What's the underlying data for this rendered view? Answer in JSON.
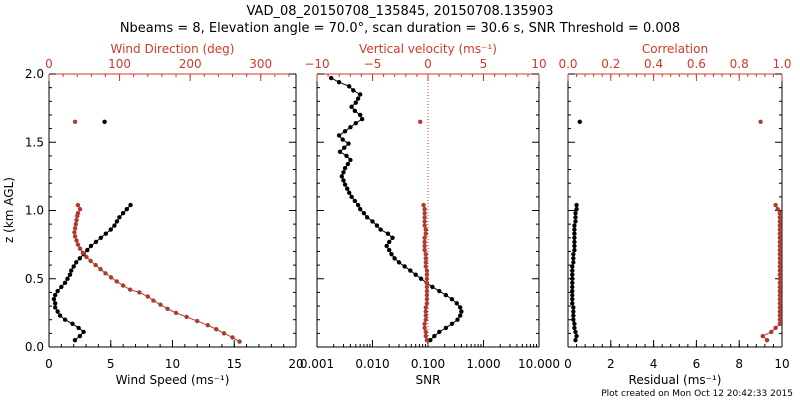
{
  "figure": {
    "title_line1": "VAD_08_20150708_135845, 20150708.135903",
    "title_line2": "Nbeams = 8, Elevation angle = 70.0°, scan duration = 30.6 s, SNR Threshold = 0.008",
    "y_label": "z (km AGL)",
    "footer": "Plot created on Mon Oct 12 20:42:33 2015",
    "colors": {
      "black": "#000000",
      "red": "#b03a2e",
      "red_text": "#d03a2a"
    }
  },
  "chart_data": [
    {
      "type": "scatter",
      "panel": "wind",
      "ylabel": "z (km AGL)",
      "ylim": [
        0.0,
        2.0
      ],
      "y_ticks": [
        "0.0",
        "0.5",
        "1.0",
        "1.5",
        "2.0"
      ],
      "bottom_axis": {
        "label": "Wind Speed (ms⁻¹)",
        "range": [
          0,
          20
        ],
        "ticks": [
          "0",
          "5",
          "10",
          "15",
          "20"
        ]
      },
      "top_axis": {
        "label": "Wind Direction (deg)",
        "range": [
          0,
          350
        ],
        "ticks": [
          "0",
          "100",
          "200",
          "300"
        ]
      },
      "series": [
        {
          "name": "Wind Speed",
          "axis": "bottom",
          "color": "#000000",
          "points": [
            [
              2.1,
              0.05
            ],
            [
              2.5,
              0.08
            ],
            [
              2.8,
              0.11
            ],
            [
              2.4,
              0.14
            ],
            [
              1.9,
              0.17
            ],
            [
              1.3,
              0.2
            ],
            [
              0.9,
              0.23
            ],
            [
              0.7,
              0.26
            ],
            [
              0.5,
              0.29
            ],
            [
              0.5,
              0.32
            ],
            [
              0.4,
              0.35
            ],
            [
              0.5,
              0.38
            ],
            [
              0.7,
              0.41
            ],
            [
              1.0,
              0.44
            ],
            [
              1.3,
              0.47
            ],
            [
              1.5,
              0.5
            ],
            [
              1.7,
              0.53
            ],
            [
              1.8,
              0.56
            ],
            [
              2.0,
              0.59
            ],
            [
              2.2,
              0.62
            ],
            [
              2.5,
              0.65
            ],
            [
              2.8,
              0.68
            ],
            [
              3.1,
              0.71
            ],
            [
              3.4,
              0.74
            ],
            [
              3.8,
              0.77
            ],
            [
              4.2,
              0.8
            ],
            [
              4.6,
              0.83
            ],
            [
              5.0,
              0.86
            ],
            [
              5.3,
              0.89
            ],
            [
              5.5,
              0.92
            ],
            [
              5.7,
              0.95
            ],
            [
              6.0,
              0.98
            ],
            [
              6.3,
              1.01
            ],
            [
              6.6,
              1.04
            ],
            [
              4.5,
              1.65
            ]
          ]
        },
        {
          "name": "Wind Direction",
          "axis": "top",
          "color": "#b03a2e",
          "points": [
            [
              270,
              0.04
            ],
            [
              260,
              0.07
            ],
            [
              248,
              0.1
            ],
            [
              237,
              0.13
            ],
            [
              225,
              0.16
            ],
            [
              210,
              0.19
            ],
            [
              195,
              0.22
            ],
            [
              180,
              0.25
            ],
            [
              168,
              0.28
            ],
            [
              158,
              0.31
            ],
            [
              148,
              0.34
            ],
            [
              140,
              0.37
            ],
            [
              128,
              0.4
            ],
            [
              115,
              0.42
            ],
            [
              105,
              0.45
            ],
            [
              96,
              0.48
            ],
            [
              88,
              0.51
            ],
            [
              80,
              0.54
            ],
            [
              73,
              0.57
            ],
            [
              66,
              0.6
            ],
            [
              59,
              0.63
            ],
            [
              53,
              0.66
            ],
            [
              48,
              0.69
            ],
            [
              44,
              0.72
            ],
            [
              41,
              0.75
            ],
            [
              39,
              0.78
            ],
            [
              37,
              0.81
            ],
            [
              36,
              0.84
            ],
            [
              37,
              0.87
            ],
            [
              38,
              0.9
            ],
            [
              39,
              0.93
            ],
            [
              40,
              0.96
            ],
            [
              41,
              0.98
            ],
            [
              44,
              1.01
            ],
            [
              41,
              1.04
            ],
            [
              37,
              1.65
            ]
          ]
        }
      ]
    },
    {
      "type": "line",
      "panel": "snr",
      "ylim": [
        0.0,
        2.0
      ],
      "bottom_axis": {
        "label": "SNR",
        "scale": "log",
        "range": [
          0.001,
          10
        ],
        "ticks": [
          "0.001",
          "0.010",
          "0.100",
          "1.000",
          "10.000"
        ]
      },
      "top_axis": {
        "label": "Vertical velocity (ms⁻¹)",
        "range": [
          -10,
          10
        ],
        "ticks": [
          "−10",
          "−5",
          "0",
          "5",
          "10"
        ]
      },
      "series": [
        {
          "name": "SNR",
          "axis": "bottom",
          "color": "#000000",
          "line": true,
          "points": [
            [
              0.11,
              0.05
            ],
            [
              0.13,
              0.08
            ],
            [
              0.16,
              0.11
            ],
            [
              0.21,
              0.14
            ],
            [
              0.27,
              0.17
            ],
            [
              0.34,
              0.2
            ],
            [
              0.38,
              0.23
            ],
            [
              0.4,
              0.26
            ],
            [
              0.38,
              0.29
            ],
            [
              0.33,
              0.32
            ],
            [
              0.27,
              0.35
            ],
            [
              0.21,
              0.38
            ],
            [
              0.16,
              0.41
            ],
            [
              0.12,
              0.44
            ],
            [
              0.095,
              0.47
            ],
            [
              0.075,
              0.5
            ],
            [
              0.06,
              0.53
            ],
            [
              0.048,
              0.56
            ],
            [
              0.038,
              0.59
            ],
            [
              0.03,
              0.62
            ],
            [
              0.025,
              0.65
            ],
            [
              0.022,
              0.68
            ],
            [
              0.02,
              0.71
            ],
            [
              0.018,
              0.74
            ],
            [
              0.02,
              0.77
            ],
            [
              0.023,
              0.8
            ],
            [
              0.019,
              0.83
            ],
            [
              0.014,
              0.86
            ],
            [
              0.012,
              0.89
            ],
            [
              0.01,
              0.92
            ],
            [
              0.008,
              0.95
            ],
            [
              0.007,
              0.98
            ],
            [
              0.006,
              1.01
            ],
            [
              0.0055,
              1.04
            ],
            [
              0.0048,
              1.07
            ],
            [
              0.0042,
              1.1
            ],
            [
              0.0038,
              1.13
            ],
            [
              0.0035,
              1.16
            ],
            [
              0.0032,
              1.19
            ],
            [
              0.003,
              1.22
            ],
            [
              0.0028,
              1.25
            ],
            [
              0.003,
              1.28
            ],
            [
              0.0032,
              1.31
            ],
            [
              0.0036,
              1.34
            ],
            [
              0.004,
              1.37
            ],
            [
              0.0034,
              1.4
            ],
            [
              0.0026,
              1.43
            ],
            [
              0.0031,
              1.46
            ],
            [
              0.0037,
              1.49
            ],
            [
              0.0029,
              1.52
            ],
            [
              0.0025,
              1.55
            ],
            [
              0.0032,
              1.58
            ],
            [
              0.004,
              1.61
            ],
            [
              0.005,
              1.64
            ],
            [
              0.0065,
              1.67
            ],
            [
              0.006,
              1.7
            ],
            [
              0.0048,
              1.73
            ],
            [
              0.0042,
              1.76
            ],
            [
              0.005,
              1.79
            ],
            [
              0.0055,
              1.82
            ],
            [
              0.006,
              1.85
            ],
            [
              0.0045,
              1.88
            ],
            [
              0.0038,
              1.91
            ],
            [
              0.0025,
              1.94
            ],
            [
              0.0018,
              1.97
            ]
          ]
        },
        {
          "name": "Vertical velocity",
          "axis": "top",
          "color": "#b03a2e",
          "points": [
            [
              -0.1,
              0.05
            ],
            [
              -0.2,
              0.08
            ],
            [
              -0.2,
              0.11
            ],
            [
              -0.3,
              0.14
            ],
            [
              -0.3,
              0.17
            ],
            [
              -0.2,
              0.2
            ],
            [
              -0.2,
              0.23
            ],
            [
              -0.2,
              0.26
            ],
            [
              -0.2,
              0.29
            ],
            [
              -0.1,
              0.32
            ],
            [
              -0.1,
              0.35
            ],
            [
              -0.1,
              0.38
            ],
            [
              -0.1,
              0.41
            ],
            [
              -0.1,
              0.44
            ],
            [
              -0.1,
              0.47
            ],
            [
              -0.1,
              0.5
            ],
            [
              -0.1,
              0.53
            ],
            [
              -0.1,
              0.56
            ],
            [
              -0.2,
              0.59
            ],
            [
              -0.2,
              0.62
            ],
            [
              -0.2,
              0.65
            ],
            [
              -0.2,
              0.68
            ],
            [
              -0.3,
              0.71
            ],
            [
              -0.3,
              0.74
            ],
            [
              -0.3,
              0.77
            ],
            [
              -0.3,
              0.8
            ],
            [
              -0.2,
              0.83
            ],
            [
              -0.2,
              0.86
            ],
            [
              -0.3,
              0.89
            ],
            [
              -0.3,
              0.92
            ],
            [
              -0.3,
              0.95
            ],
            [
              -0.3,
              0.98
            ],
            [
              -0.3,
              1.01
            ],
            [
              -0.4,
              1.04
            ],
            [
              -0.7,
              1.65
            ]
          ]
        },
        {
          "name": "Zero reference",
          "axis": "top",
          "color": "#d03a2a",
          "style": "dotted",
          "x": 0
        }
      ]
    },
    {
      "type": "scatter",
      "panel": "residual",
      "ylim": [
        0.0,
        2.0
      ],
      "bottom_axis": {
        "label": "Residual (ms⁻¹)",
        "range": [
          0,
          10
        ],
        "ticks": [
          "0",
          "2",
          "4",
          "6",
          "8",
          "10"
        ]
      },
      "top_axis": {
        "label": "Correlation",
        "range": [
          0.0,
          1.0
        ],
        "ticks": [
          "0.0",
          "0.2",
          "0.4",
          "0.6",
          "0.8",
          "1.0"
        ]
      },
      "series": [
        {
          "name": "Residual",
          "axis": "bottom",
          "color": "#000000",
          "points": [
            [
              0.35,
              0.05
            ],
            [
              0.4,
              0.08
            ],
            [
              0.35,
              0.11
            ],
            [
              0.3,
              0.14
            ],
            [
              0.3,
              0.17
            ],
            [
              0.25,
              0.2
            ],
            [
              0.25,
              0.23
            ],
            [
              0.25,
              0.26
            ],
            [
              0.25,
              0.29
            ],
            [
              0.2,
              0.32
            ],
            [
              0.2,
              0.35
            ],
            [
              0.2,
              0.38
            ],
            [
              0.2,
              0.41
            ],
            [
              0.2,
              0.44
            ],
            [
              0.2,
              0.47
            ],
            [
              0.2,
              0.5
            ],
            [
              0.2,
              0.53
            ],
            [
              0.2,
              0.56
            ],
            [
              0.2,
              0.59
            ],
            [
              0.25,
              0.62
            ],
            [
              0.25,
              0.65
            ],
            [
              0.25,
              0.68
            ],
            [
              0.3,
              0.71
            ],
            [
              0.3,
              0.74
            ],
            [
              0.3,
              0.77
            ],
            [
              0.3,
              0.8
            ],
            [
              0.3,
              0.83
            ],
            [
              0.3,
              0.86
            ],
            [
              0.3,
              0.89
            ],
            [
              0.35,
              0.92
            ],
            [
              0.35,
              0.95
            ],
            [
              0.35,
              0.98
            ],
            [
              0.4,
              1.01
            ],
            [
              0.4,
              1.04
            ],
            [
              0.55,
              1.65
            ]
          ]
        },
        {
          "name": "Correlation",
          "axis": "top",
          "color": "#b03a2e",
          "points": [
            [
              0.93,
              0.05
            ],
            [
              0.91,
              0.08
            ],
            [
              0.95,
              0.11
            ],
            [
              0.97,
              0.14
            ],
            [
              0.99,
              0.17
            ],
            [
              0.99,
              0.2
            ],
            [
              0.99,
              0.23
            ],
            [
              0.99,
              0.26
            ],
            [
              0.99,
              0.29
            ],
            [
              0.99,
              0.32
            ],
            [
              0.99,
              0.35
            ],
            [
              0.99,
              0.38
            ],
            [
              0.99,
              0.41
            ],
            [
              0.99,
              0.44
            ],
            [
              0.99,
              0.47
            ],
            [
              0.99,
              0.5
            ],
            [
              0.99,
              0.53
            ],
            [
              0.99,
              0.56
            ],
            [
              0.99,
              0.59
            ],
            [
              0.99,
              0.62
            ],
            [
              0.99,
              0.65
            ],
            [
              0.99,
              0.68
            ],
            [
              0.99,
              0.71
            ],
            [
              0.99,
              0.74
            ],
            [
              0.99,
              0.77
            ],
            [
              0.99,
              0.8
            ],
            [
              0.99,
              0.83
            ],
            [
              0.99,
              0.86
            ],
            [
              0.99,
              0.89
            ],
            [
              0.99,
              0.92
            ],
            [
              0.99,
              0.95
            ],
            [
              0.99,
              0.98
            ],
            [
              0.98,
              1.01
            ],
            [
              0.97,
              1.04
            ],
            [
              0.9,
              1.65
            ]
          ]
        }
      ]
    }
  ]
}
